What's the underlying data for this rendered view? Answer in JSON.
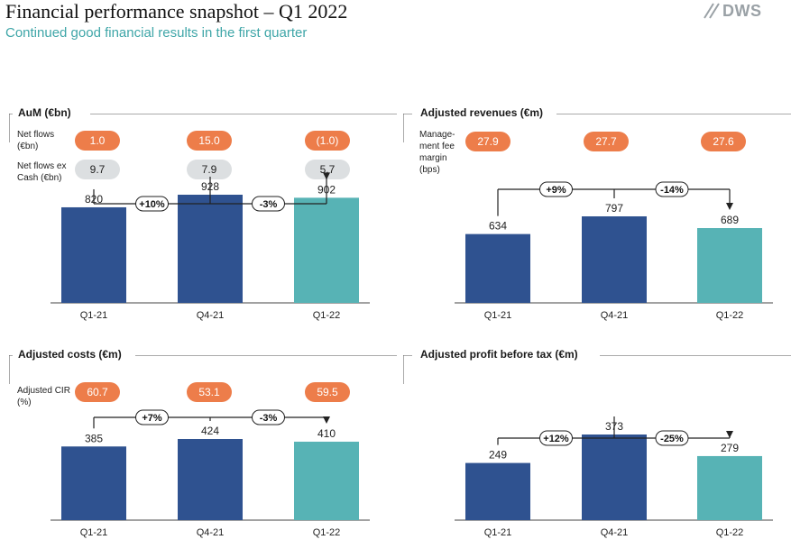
{
  "header": {
    "title": "Financial performance snapshot – Q1 2022",
    "subtitle": "Continued good financial results in the first quarter",
    "logo_text": "DWS"
  },
  "colors": {
    "dark_bar": "#2f5290",
    "teal_bar": "#57b3b5",
    "orange_pill": "#ed7d4a",
    "grey_pill": "#dcdfe1"
  },
  "panels": {
    "aum": {
      "title": "AuM (€bn)",
      "net_flows": {
        "label": "Net flows (€bn)",
        "values": [
          "1.0",
          "15.0",
          "(1.0)"
        ]
      },
      "net_flows_ex_cash": {
        "label": "Net flows ex Cash (€bn)",
        "values": [
          "9.7",
          "7.9",
          "5.7"
        ]
      }
    },
    "revenues": {
      "title": "Adjusted revenues (€m)",
      "margin": {
        "label": "Manage-ment fee margin (bps)",
        "values": [
          "27.9",
          "27.7",
          "27.6"
        ]
      }
    },
    "costs": {
      "title": "Adjusted costs (€m)",
      "cir": {
        "label": "Adjusted CIR (%)",
        "values": [
          "60.7",
          "53.1",
          "59.5"
        ]
      }
    },
    "pbt": {
      "title": "Adjusted profit before tax  (€m)"
    }
  },
  "chart_data": [
    {
      "id": "aum",
      "type": "bar",
      "categories": [
        "Q1-21",
        "Q4-21",
        "Q1-22"
      ],
      "values": [
        820,
        928,
        902
      ],
      "changes": [
        "+10%",
        "-3%"
      ],
      "ylim": [
        0,
        1100
      ]
    },
    {
      "id": "revenues",
      "type": "bar",
      "categories": [
        "Q1-21",
        "Q4-21",
        "Q1-22"
      ],
      "values": [
        634,
        797,
        689
      ],
      "changes": [
        "+9%",
        "-14%"
      ],
      "ylim": [
        0,
        840
      ]
    },
    {
      "id": "costs",
      "type": "bar",
      "categories": [
        "Q1-21",
        "Q4-21",
        "Q1-22"
      ],
      "values": [
        385,
        424,
        410
      ],
      "changes": [
        "+7%",
        "-3%"
      ],
      "ylim": [
        0,
        475
      ]
    },
    {
      "id": "pbt",
      "type": "bar",
      "categories": [
        "Q1-21",
        "Q4-21",
        "Q1-22"
      ],
      "values": [
        249,
        373,
        279
      ],
      "changes": [
        "+12%",
        "-25%"
      ],
      "ylim": [
        0,
        420
      ]
    }
  ]
}
